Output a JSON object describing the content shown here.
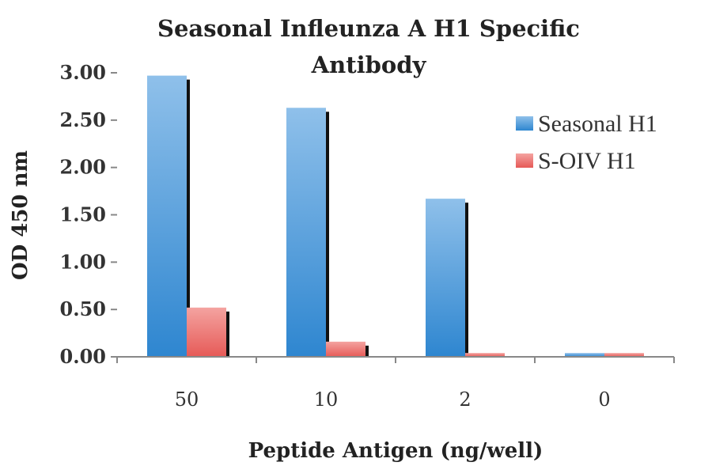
{
  "chart_data": {
    "type": "bar",
    "title_line1": "Seasonal Infleunza A H1 Specific",
    "title_line2": "Antibody",
    "xlabel": "Peptide Antigen (ng/well)",
    "ylabel": "OD 450 nm",
    "categories": [
      "50",
      "10",
      "2",
      "0"
    ],
    "series": [
      {
        "name": "Seasonal H1",
        "values": [
          2.97,
          2.63,
          1.67,
          0.04
        ],
        "color": "#3a8fd4"
      },
      {
        "name": "S-OIV H1",
        "values": [
          0.52,
          0.16,
          0.04,
          0.04
        ],
        "color": "#e8605e"
      }
    ],
    "ylim": [
      0,
      3.0
    ],
    "yticks": [
      "0.00",
      "0.50",
      "1.00",
      "1.50",
      "2.00",
      "2.50",
      "3.00"
    ],
    "grid": false,
    "legend_position": "right"
  }
}
